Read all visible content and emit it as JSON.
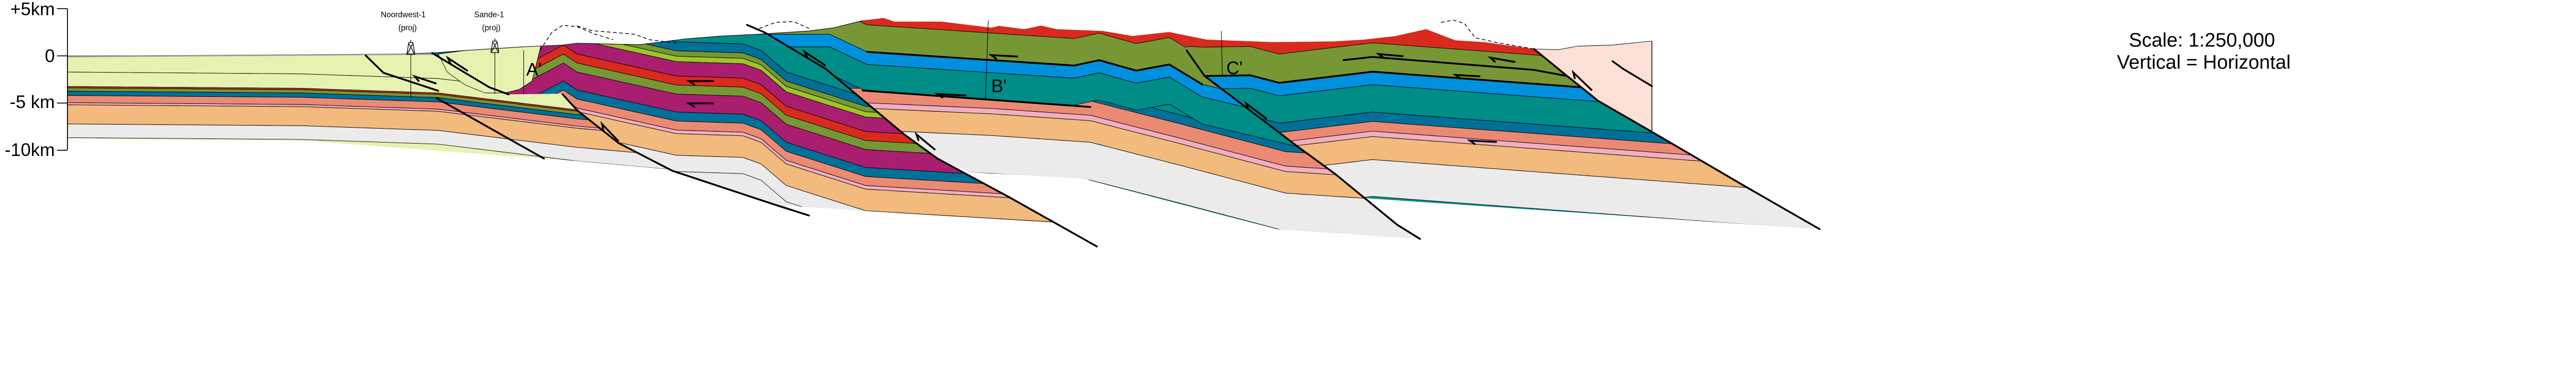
{
  "axis": {
    "unit": "km",
    "ticks": [
      {
        "label": "+5km",
        "value": 5
      },
      {
        "label": "0",
        "value": 0
      },
      {
        "label": "-5 km",
        "value": -5
      },
      {
        "label": "-10km",
        "value": -10
      }
    ]
  },
  "wells": [
    {
      "name": "Noordwest-1",
      "note": "(proj)"
    },
    {
      "name": "Sande-1",
      "note": "(proj)"
    }
  ],
  "section_labels": {
    "a": "A'",
    "b": "B'",
    "c": "C'"
  },
  "scale": {
    "line1": "Scale: 1:250,000",
    "line2": "Vertical = Horizontal"
  },
  "unit_colors": {
    "light_yellow": "#e6f2b0",
    "red": "#da2a1e",
    "olive_green": "#779735",
    "yellow_green": "#9dc42a",
    "purple": "#a91e6e",
    "dark_blue": "#007098",
    "bright_blue": "#0090de",
    "teal": "#008c87",
    "salmon": "#eb8a72",
    "pink": "#f2aec0",
    "tan": "#f2ba7c",
    "light_grey": "#ebebeb",
    "pale_pink": "#fde0d5"
  }
}
